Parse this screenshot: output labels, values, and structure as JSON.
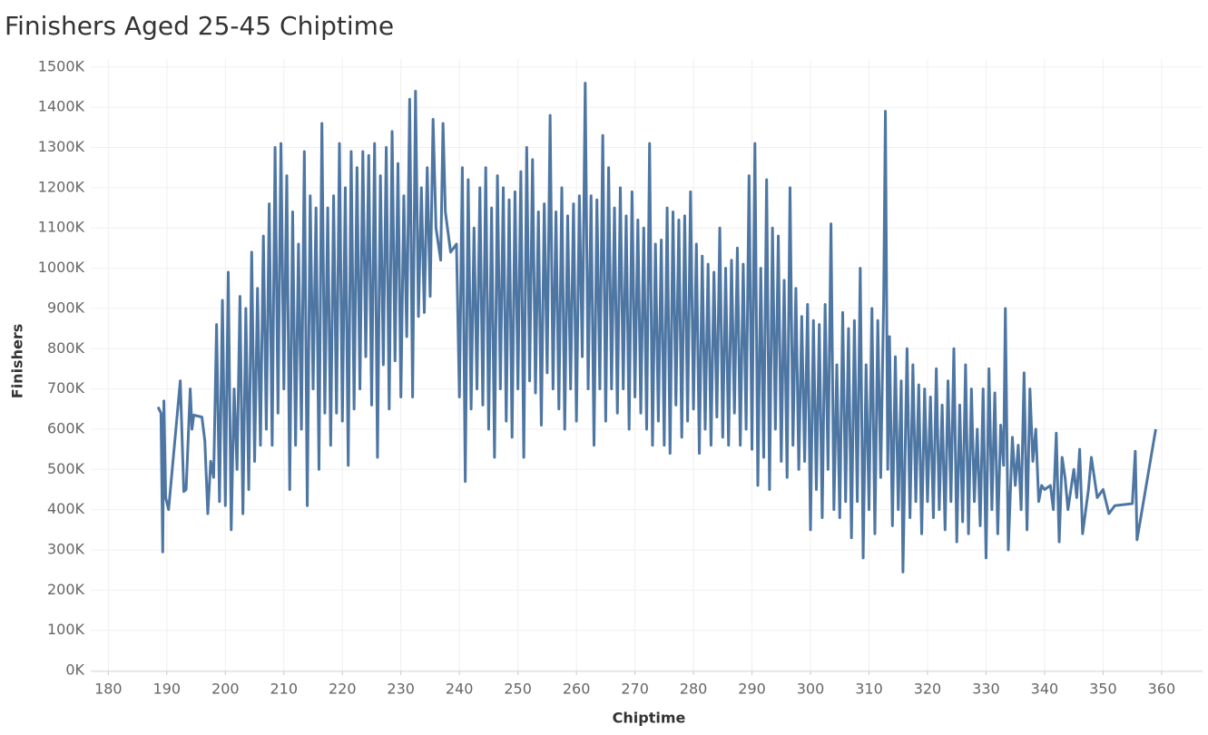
{
  "chart_data": {
    "type": "line",
    "title": "Finishers Aged 25-45 Chiptime",
    "x_label": "Chiptime",
    "y_label": "Finishers",
    "xlim": [
      177,
      367
    ],
    "xticks": [
      180,
      190,
      200,
      210,
      220,
      230,
      240,
      250,
      260,
      270,
      280,
      290,
      300,
      310,
      320,
      330,
      340,
      350,
      360
    ],
    "ylim": [
      0,
      1520000
    ],
    "yticks": [
      {
        "value": 0,
        "label": "0K"
      },
      {
        "value": 100000,
        "label": "100K"
      },
      {
        "value": 200000,
        "label": "200K"
      },
      {
        "value": 300000,
        "label": "300K"
      },
      {
        "value": 400000,
        "label": "400K"
      },
      {
        "value": 500000,
        "label": "500K"
      },
      {
        "value": 600000,
        "label": "600K"
      },
      {
        "value": 700000,
        "label": "700K"
      },
      {
        "value": 800000,
        "label": "800K"
      },
      {
        "value": 900000,
        "label": "900K"
      },
      {
        "value": 1000000,
        "label": "1000K"
      },
      {
        "value": 1100000,
        "label": "1100K"
      },
      {
        "value": 1200000,
        "label": "1200K"
      },
      {
        "value": 1300000,
        "label": "1300K"
      },
      {
        "value": 1400000,
        "label": "1400K"
      },
      {
        "value": 1500000,
        "label": "1500K"
      }
    ],
    "grid": true,
    "color": "#4e76a3",
    "x": [
      188.5,
      189,
      189.3,
      189.5,
      189.8,
      190.3,
      190.8,
      192.3,
      192.9,
      193.3,
      194,
      194.3,
      194.6,
      196,
      196.5,
      197,
      197.5,
      198,
      198.5,
      199,
      199.5,
      200,
      200.5,
      201,
      201.5,
      202,
      202.5,
      203,
      203.5,
      204,
      204.5,
      205,
      205.5,
      206,
      206.5,
      207,
      207.5,
      208,
      208.5,
      209,
      209.5,
      210,
      210.5,
      211,
      211.5,
      212,
      212.5,
      213,
      213.5,
      214,
      214.5,
      215,
      215.5,
      216,
      216.5,
      217,
      217.5,
      218,
      218.5,
      219,
      219.5,
      220,
      220.5,
      221,
      221.5,
      222,
      222.5,
      223,
      223.5,
      224,
      224.5,
      225,
      225.5,
      226,
      226.5,
      227,
      227.5,
      228,
      228.5,
      229,
      229.5,
      230,
      230.5,
      231,
      231.5,
      232,
      232.5,
      233,
      233.5,
      234,
      234.5,
      235,
      235.5,
      236,
      236.8,
      237.2,
      237.6,
      238.5,
      239.5,
      240,
      240.5,
      241,
      241.5,
      242,
      242.5,
      243,
      243.5,
      244,
      244.5,
      245,
      245.5,
      246,
      246.5,
      247,
      247.5,
      248,
      248.5,
      249,
      249.5,
      250,
      250.5,
      251,
      251.5,
      252,
      252.5,
      253,
      253.5,
      254,
      254.5,
      255,
      255.5,
      256,
      256.5,
      257,
      257.5,
      258,
      258.5,
      259,
      259.5,
      260,
      260.5,
      261,
      261.5,
      262,
      262.5,
      263,
      263.5,
      264,
      264.5,
      265,
      265.5,
      266,
      266.5,
      267,
      267.5,
      268,
      268.5,
      269,
      269.5,
      270,
      270.5,
      271,
      271.5,
      272,
      272.5,
      273,
      273.5,
      274,
      274.5,
      275,
      275.5,
      276,
      276.5,
      277,
      277.5,
      278,
      278.5,
      279,
      279.5,
      280,
      280.5,
      281,
      281.5,
      282,
      282.5,
      283,
      283.5,
      284,
      284.5,
      285,
      285.5,
      286,
      286.5,
      287,
      287.5,
      288,
      288.5,
      289,
      289.5,
      290,
      290.5,
      291,
      291.5,
      292,
      292.5,
      293,
      293.5,
      294,
      294.5,
      295,
      295.5,
      296,
      296.5,
      297,
      297.5,
      298,
      298.5,
      299,
      299.5,
      300,
      300.5,
      301,
      301.5,
      302,
      302.5,
      303,
      303.5,
      304,
      304.5,
      305,
      305.5,
      306,
      306.5,
      307,
      307.5,
      308,
      308.5,
      309,
      309.5,
      310,
      310.5,
      311,
      311.5,
      312,
      312.5,
      312.8,
      313.2,
      313.5,
      314,
      314.5,
      315,
      315.5,
      315.8,
      316.5,
      317,
      317.5,
      318,
      318.5,
      319,
      319.5,
      320,
      320.5,
      321,
      321.5,
      322,
      322.5,
      323,
      323.5,
      324,
      324.5,
      325,
      325.5,
      326,
      326.5,
      327,
      327.5,
      328,
      328.5,
      329,
      329.5,
      330,
      330.5,
      331,
      331.5,
      332,
      332.5,
      333,
      333.3,
      333.8,
      334.5,
      335,
      335.5,
      336,
      336.5,
      337,
      337.5,
      338,
      338.5,
      339,
      339.5,
      340,
      341,
      341.5,
      342,
      342.5,
      343,
      343.5,
      344,
      345,
      345.5,
      346,
      346.5,
      347.5,
      348,
      349,
      350,
      351,
      352,
      355,
      355.5,
      355.8,
      359
    ],
    "values": [
      655000,
      640000,
      295000,
      670000,
      430000,
      400000,
      480000,
      720000,
      445000,
      450000,
      700000,
      600000,
      635000,
      630000,
      570000,
      390000,
      520000,
      480000,
      860000,
      420000,
      920000,
      410000,
      990000,
      350000,
      700000,
      500000,
      930000,
      390000,
      900000,
      450000,
      1040000,
      520000,
      950000,
      560000,
      1080000,
      600000,
      1160000,
      560000,
      1300000,
      640000,
      1310000,
      700000,
      1230000,
      450000,
      1140000,
      560000,
      1060000,
      600000,
      1290000,
      410000,
      1180000,
      700000,
      1150000,
      500000,
      1360000,
      640000,
      1150000,
      560000,
      1180000,
      640000,
      1310000,
      620000,
      1200000,
      510000,
      1290000,
      650000,
      1250000,
      700000,
      1290000,
      780000,
      1280000,
      660000,
      1310000,
      530000,
      1230000,
      760000,
      1300000,
      650000,
      1340000,
      770000,
      1260000,
      680000,
      1180000,
      830000,
      1420000,
      680000,
      1440000,
      880000,
      1200000,
      890000,
      1250000,
      930000,
      1370000,
      1100000,
      1020000,
      1360000,
      1140000,
      1040000,
      1060000,
      680000,
      1250000,
      470000,
      1220000,
      650000,
      1100000,
      700000,
      1200000,
      660000,
      1250000,
      600000,
      1150000,
      530000,
      1230000,
      700000,
      1200000,
      620000,
      1170000,
      580000,
      1190000,
      700000,
      1240000,
      530000,
      1300000,
      720000,
      1270000,
      690000,
      1140000,
      610000,
      1160000,
      740000,
      1380000,
      700000,
      1140000,
      650000,
      1200000,
      600000,
      1130000,
      700000,
      1160000,
      620000,
      1180000,
      780000,
      1460000,
      700000,
      1180000,
      560000,
      1170000,
      700000,
      1330000,
      620000,
      1250000,
      700000,
      1150000,
      640000,
      1200000,
      700000,
      1130000,
      600000,
      1190000,
      680000,
      1120000,
      640000,
      1100000,
      600000,
      1310000,
      560000,
      1060000,
      620000,
      1070000,
      560000,
      1150000,
      540000,
      1140000,
      660000,
      1120000,
      580000,
      1130000,
      620000,
      1190000,
      650000,
      1060000,
      540000,
      1030000,
      600000,
      1010000,
      560000,
      990000,
      630000,
      1100000,
      580000,
      1000000,
      560000,
      1020000,
      640000,
      1050000,
      560000,
      1010000,
      600000,
      1230000,
      550000,
      1310000,
      460000,
      1000000,
      530000,
      1220000,
      450000,
      1100000,
      600000,
      1080000,
      520000,
      970000,
      480000,
      1200000,
      560000,
      950000,
      500000,
      880000,
      520000,
      910000,
      350000,
      870000,
      450000,
      860000,
      380000,
      910000,
      500000,
      1110000,
      400000,
      760000,
      380000,
      890000,
      420000,
      850000,
      330000,
      870000,
      420000,
      1000000,
      280000,
      760000,
      400000,
      900000,
      340000,
      870000,
      480000,
      920000,
      1390000,
      500000,
      830000,
      360000,
      780000,
      400000,
      720000,
      245000,
      800000,
      380000,
      760000,
      420000,
      710000,
      340000,
      700000,
      420000,
      680000,
      380000,
      750000,
      400000,
      660000,
      350000,
      720000,
      420000,
      800000,
      320000,
      660000,
      370000,
      760000,
      340000,
      700000,
      420000,
      600000,
      360000,
      700000,
      280000,
      750000,
      400000,
      690000,
      340000,
      610000,
      510000,
      900000,
      300000,
      580000,
      460000,
      560000,
      400000,
      740000,
      350000,
      700000,
      520000,
      600000,
      420000,
      460000,
      450000,
      460000,
      400000,
      590000,
      320000,
      530000,
      480000,
      400000,
      500000,
      430000,
      550000,
      340000,
      450000,
      530000,
      430000,
      450000,
      390000,
      410000,
      415000,
      545000,
      325000,
      600000
    ]
  }
}
